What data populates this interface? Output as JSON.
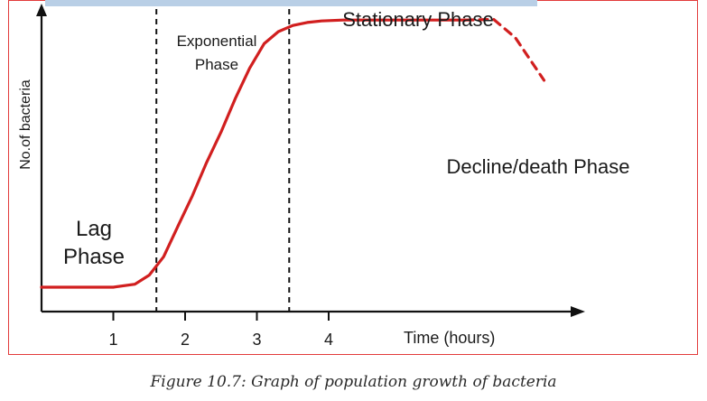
{
  "chart_data": {
    "type": "line",
    "title": "",
    "xlabel": "Time (hours)",
    "ylabel": "No.of bacteria",
    "xlim": [
      0,
      5.3
    ],
    "ylim": [
      0,
      1
    ],
    "grid": false,
    "x_ticks": [
      1,
      2,
      3,
      4
    ],
    "x_tick_labels": [
      "1",
      "2",
      "3",
      "4"
    ],
    "series": [
      {
        "style": "solid",
        "color": "#d11f1f",
        "x": [
          0,
          0.5,
          1.0,
          1.3,
          1.5,
          1.7,
          1.9,
          2.1,
          2.3,
          2.5,
          2.7,
          2.9,
          3.1,
          3.3,
          3.5,
          3.7,
          3.9,
          4.2,
          4.6,
          5.0,
          5.4,
          5.9
        ],
        "y": [
          0.08,
          0.08,
          0.08,
          0.09,
          0.12,
          0.18,
          0.28,
          0.38,
          0.49,
          0.59,
          0.7,
          0.8,
          0.88,
          0.92,
          0.94,
          0.95,
          0.955,
          0.958,
          0.958,
          0.958,
          0.958,
          0.958
        ]
      },
      {
        "style": "dashed",
        "color": "#d11f1f",
        "x": [
          5.9,
          6.3,
          6.6,
          7.0
        ],
        "y": [
          0.958,
          0.96,
          0.9,
          0.76
        ]
      }
    ],
    "boundaries": [
      {
        "x": 1.6,
        "style": "dashed"
      },
      {
        "x": 3.45,
        "style": "dashed"
      }
    ],
    "annotations": {
      "lag_line1": "Lag",
      "lag_line2": "Phase",
      "exp_line1": "Exponential",
      "exp_line2": "Phase",
      "stationary": "Stationary Phase",
      "decline": "Decline/death Phase"
    }
  },
  "caption": "Figure 10.7: Graph of population growth of bacteria"
}
